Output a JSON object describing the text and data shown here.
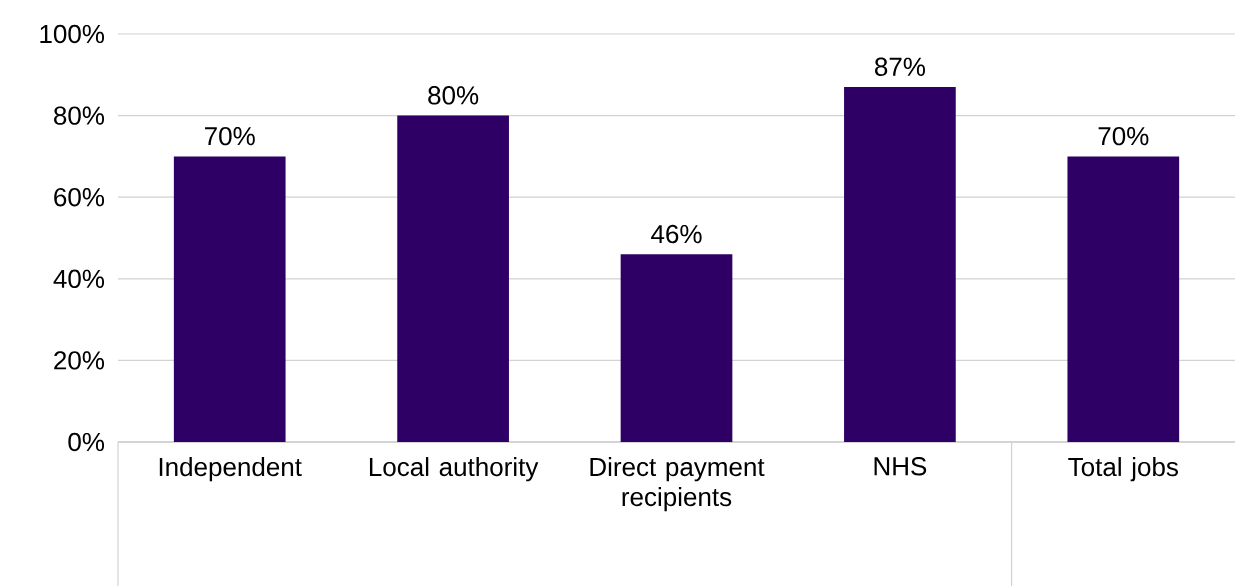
{
  "chart_data": {
    "type": "bar",
    "categories": [
      "Independent",
      "Local authority",
      "Direct payment recipients",
      "NHS",
      "Total jobs"
    ],
    "values": [
      70,
      80,
      46,
      87,
      70
    ],
    "value_labels": [
      "70%",
      "80%",
      "46%",
      "87%",
      "70%"
    ],
    "color": "#2e0066",
    "ylim": [
      0,
      100
    ],
    "yticks": [
      {
        "value": 0,
        "label": "0%"
      },
      {
        "value": 20,
        "label": "20%"
      },
      {
        "value": 40,
        "label": "40%"
      },
      {
        "value": 60,
        "label": "60%"
      },
      {
        "value": 80,
        "label": "80%"
      },
      {
        "value": 100,
        "label": "100%"
      }
    ],
    "grid": "y"
  }
}
